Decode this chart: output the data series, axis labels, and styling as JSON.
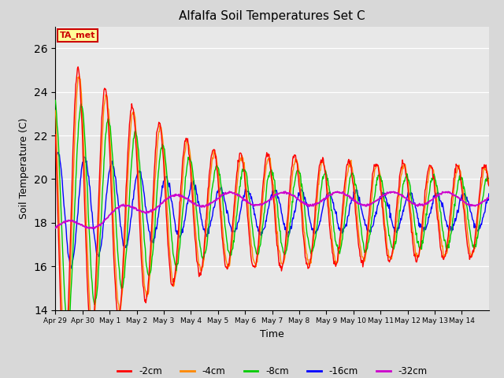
{
  "title": "Alfalfa Soil Temperatures Set C",
  "xlabel": "Time",
  "ylabel": "Soil Temperature (C)",
  "ylim": [
    14,
    27
  ],
  "yticks": [
    14,
    16,
    18,
    20,
    22,
    24,
    26
  ],
  "fig_bg_color": "#d8d8d8",
  "plot_bg_color": "#e8e8e8",
  "annotation_text": "TA_met",
  "annotation_box_color": "#ffff99",
  "annotation_border_color": "#cc0000",
  "annotation_text_color": "#cc0000",
  "series_colors": {
    "-2cm": "#ff0000",
    "-4cm": "#ff8800",
    "-8cm": "#00cc00",
    "-16cm": "#0000ff",
    "-32cm": "#cc00cc"
  },
  "legend_entries": [
    "-2cm",
    "-4cm",
    "-8cm",
    "-16cm",
    "-32cm"
  ],
  "tick_labels": [
    "Apr 29",
    "Apr 30",
    "May 1",
    "May 2",
    "May 3",
    "May 4",
    "May 5",
    "May 6",
    "May 7",
    "May 8",
    "May 9",
    "May 10",
    "May 11",
    "May 12",
    "May 13",
    "May 14"
  ],
  "n_days": 16,
  "samples_per_day": 48
}
